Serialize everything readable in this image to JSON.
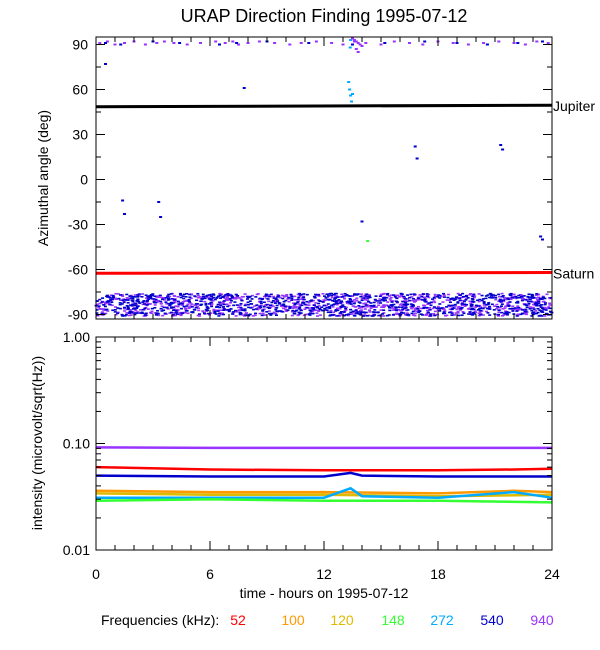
{
  "chart_data": [
    {
      "type": "scatter",
      "panel": "direction",
      "title": "URAP Direction Finding  1995-07-12",
      "xlabel": "",
      "ylabel": "Azimuthal angle (deg)",
      "xlim": [
        0,
        24
      ],
      "ylim": [
        -93,
        95
      ],
      "yticks": [
        90,
        60,
        30,
        0,
        -30,
        -60,
        -90
      ],
      "ytick_labels": [
        "90",
        "60",
        "30",
        "0",
        "-30",
        "-60",
        "-90"
      ],
      "annotations": [
        {
          "text": "Jupiter",
          "y": 49,
          "color": "#000000"
        },
        {
          "text": "Saturn",
          "y": -62.5,
          "color": "#ff0000"
        }
      ],
      "series": [
        {
          "name": "Jupiter",
          "type": "line",
          "color": "#000000",
          "x": [
            0,
            24
          ],
          "y": [
            48.5,
            49.5
          ]
        },
        {
          "name": "Saturn",
          "type": "line",
          "color": "#ff0000",
          "x": [
            0,
            24
          ],
          "y": [
            -62.5,
            -62
          ]
        },
        {
          "name": "940",
          "type": "scatter-band",
          "color": "#9933ff",
          "x_range": [
            0,
            24
          ],
          "y_range": [
            -91,
            -76
          ]
        },
        {
          "name": "540",
          "type": "scatter-band",
          "color": "#0000cc",
          "x_range": [
            0,
            24
          ],
          "y_range": [
            -91,
            -76
          ]
        },
        {
          "name": "940 near +90",
          "type": "scatter",
          "color": "#9933ff",
          "x": [
            0.2,
            0.6,
            1.0,
            1.5,
            2.0,
            2.6,
            3.2,
            3.6,
            4.1,
            4.8,
            5.5,
            6.3,
            6.8,
            7.2,
            7.5,
            8.0,
            8.6,
            9.4,
            10.2,
            10.8,
            11.6,
            12.4,
            13.0,
            13.6,
            14.2,
            15.0,
            15.7,
            16.5,
            17.2,
            18.0,
            18.8,
            19.6,
            20.4,
            21.2,
            22.0,
            22.6,
            23.2,
            23.8
          ],
          "y": [
            91,
            92,
            90,
            91,
            92,
            90,
            91,
            92,
            91,
            90,
            91,
            92,
            91,
            92,
            90,
            91,
            92,
            91,
            90,
            91,
            92,
            91,
            90,
            92,
            91,
            90,
            92,
            91,
            90,
            92,
            91,
            90,
            91,
            92,
            91,
            90,
            92,
            91
          ]
        },
        {
          "name": "540 near +90",
          "type": "scatter",
          "color": "#0000cc",
          "x": [
            0.5,
            1.3,
            3.0,
            4.4,
            6.5,
            7.4,
            9.0,
            11.2,
            13.5,
            15.2,
            17.3,
            19.0,
            20.6,
            22.2,
            23.5
          ],
          "y": [
            91,
            90,
            92,
            91,
            90,
            91,
            92,
            91,
            90,
            91,
            92,
            91,
            90,
            91,
            92
          ]
        },
        {
          "name": "scattered points",
          "type": "scatter",
          "color": "#0000cc",
          "x": [
            0.5,
            1.4,
            1.5,
            3.3,
            3.4,
            7.8,
            14.0,
            16.8,
            16.9,
            21.3,
            21.4,
            23.4,
            23.5
          ],
          "y": [
            77,
            -14,
            -23,
            -15,
            -25,
            61,
            -28,
            22,
            14,
            23,
            20,
            -38,
            -40
          ]
        },
        {
          "name": "272 burst near 13.4h",
          "type": "scatter",
          "color": "#00aaff",
          "x": [
            13.3,
            13.35,
            13.4,
            13.45,
            13.5,
            13.4,
            13.38
          ],
          "y": [
            65,
            60,
            56,
            52,
            57,
            93,
            88
          ]
        },
        {
          "name": "940 burst near 13.6h",
          "type": "scatter",
          "color": "#9933ff",
          "x": [
            13.5,
            13.6,
            13.7,
            13.8,
            13.9,
            14.0,
            13.7,
            13.8
          ],
          "y": [
            94,
            93,
            92,
            91,
            90,
            89,
            87,
            85
          ]
        },
        {
          "name": "148",
          "type": "scatter",
          "color": "#33ff33",
          "x": [
            14.3
          ],
          "y": [
            -41
          ]
        }
      ]
    },
    {
      "type": "line",
      "panel": "intensity",
      "title": "",
      "xlabel": "time - hours on 1995-07-12",
      "ylabel": "intensity (microvolt/sqrt(Hz))",
      "xlim": [
        0,
        24
      ],
      "ylim": [
        0.01,
        1.0
      ],
      "yscale": "log",
      "xticks": [
        0,
        6,
        12,
        18,
        24
      ],
      "xtick_labels": [
        "0",
        "6",
        "12",
        "18",
        "24"
      ],
      "yticks": [
        1.0,
        0.1,
        0.01
      ],
      "ytick_labels": [
        "1.00",
        "0.10",
        "0.01"
      ],
      "series": [
        {
          "name": "940",
          "color": "#9933ff",
          "x": [
            0,
            6,
            12,
            18,
            24
          ],
          "y": [
            0.092,
            0.091,
            0.091,
            0.091,
            0.091
          ]
        },
        {
          "name": "52",
          "color": "#ff0000",
          "x": [
            0,
            6,
            12,
            18,
            22,
            24
          ],
          "y": [
            0.06,
            0.057,
            0.056,
            0.056,
            0.057,
            0.058
          ]
        },
        {
          "name": "540",
          "color": "#0000cc",
          "x": [
            0,
            6,
            12,
            13.4,
            14,
            18,
            24
          ],
          "y": [
            0.05,
            0.049,
            0.049,
            0.053,
            0.05,
            0.049,
            0.049
          ]
        },
        {
          "name": "100",
          "color": "#ff9900",
          "x": [
            0,
            6,
            12,
            18,
            22,
            24
          ],
          "y": [
            0.036,
            0.035,
            0.035,
            0.034,
            0.036,
            0.035
          ]
        },
        {
          "name": "120",
          "color": "#ddbb00",
          "x": [
            0,
            6,
            12,
            18,
            24
          ],
          "y": [
            0.034,
            0.033,
            0.033,
            0.032,
            0.033
          ]
        },
        {
          "name": "272",
          "color": "#00aaff",
          "x": [
            0,
            6,
            12,
            13.4,
            14,
            18,
            22,
            24
          ],
          "y": [
            0.031,
            0.031,
            0.031,
            0.038,
            0.032,
            0.031,
            0.035,
            0.031
          ]
        },
        {
          "name": "148",
          "color": "#33ff33",
          "x": [
            0,
            6,
            12,
            18,
            24
          ],
          "y": [
            0.029,
            0.03,
            0.029,
            0.029,
            0.028
          ]
        }
      ]
    }
  ],
  "legend": {
    "label": "Frequencies (kHz):",
    "items": [
      {
        "text": "52",
        "color": "#ff0000"
      },
      {
        "text": "100",
        "color": "#ff9900"
      },
      {
        "text": "120",
        "color": "#ddbb00"
      },
      {
        "text": "148",
        "color": "#33ff33"
      },
      {
        "text": "272",
        "color": "#00aaff"
      },
      {
        "text": "540",
        "color": "#0000cc"
      },
      {
        "text": "940",
        "color": "#9933ff"
      }
    ]
  }
}
